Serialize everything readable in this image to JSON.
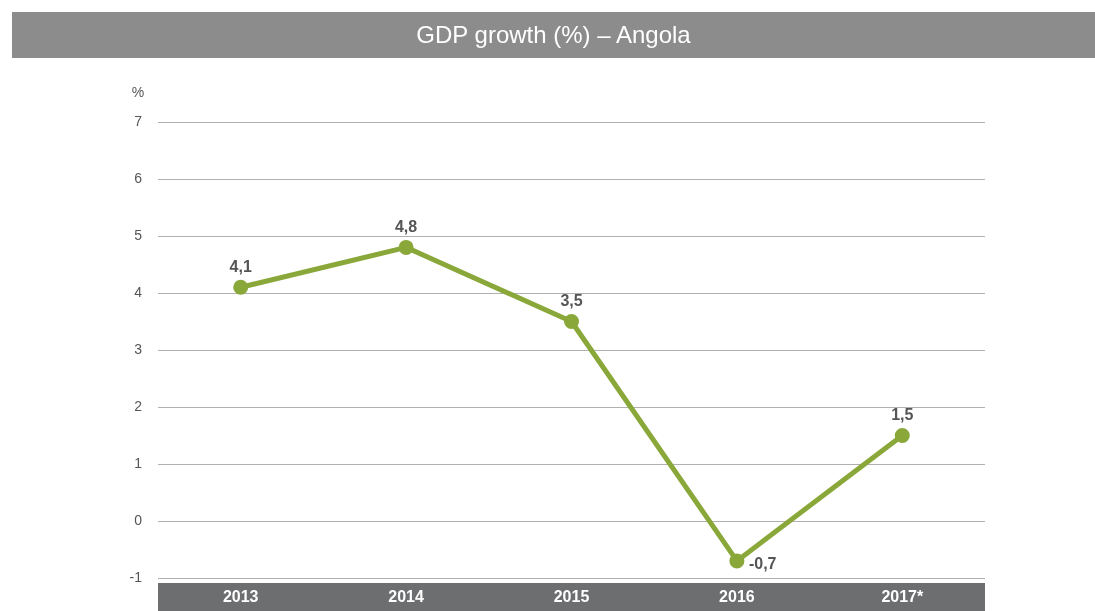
{
  "chart_data": {
    "type": "line",
    "title": "GDP growth (%) – Angola",
    "ylabel": "%",
    "categories": [
      "2013",
      "2014",
      "2015",
      "2016",
      "2017*"
    ],
    "series": [
      {
        "color": "#8aa83a",
        "values": [
          4.1,
          4.8,
          3.5,
          -0.7,
          1.5
        ],
        "value_labels": [
          "4,1",
          "4,8",
          "3,5",
          "-0,7",
          "1,5"
        ]
      }
    ],
    "ylim": [
      -1,
      7
    ],
    "yticks": [
      -1,
      0,
      1,
      2,
      3,
      4,
      5,
      6,
      7
    ],
    "grid": "y",
    "legend": false,
    "marker": "circle",
    "line_style": "solid"
  }
}
